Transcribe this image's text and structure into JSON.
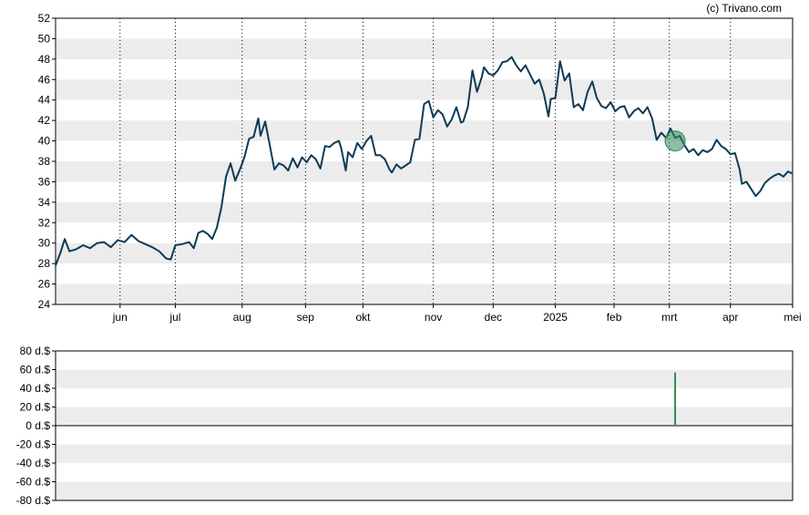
{
  "copyright": "(c) Trivano.com",
  "chart_data": [
    {
      "type": "line",
      "series": [
        {
          "values": [
            [
              0,
              27.8
            ],
            [
              4,
              29.0
            ],
            [
              8,
              30.4
            ],
            [
              12,
              29.2
            ],
            [
              18,
              29.4
            ],
            [
              24,
              29.8
            ],
            [
              30,
              29.5
            ],
            [
              36,
              30.0
            ],
            [
              42,
              30.1
            ],
            [
              48,
              29.6
            ],
            [
              54,
              30.3
            ],
            [
              60,
              30.1
            ],
            [
              66,
              30.8
            ],
            [
              72,
              30.2
            ],
            [
              78,
              29.9
            ],
            [
              84,
              29.6
            ],
            [
              90,
              29.2
            ],
            [
              96,
              28.5
            ],
            [
              100,
              28.4
            ],
            [
              104,
              29.8
            ],
            [
              110,
              29.9
            ],
            [
              116,
              30.1
            ],
            [
              120,
              29.5
            ],
            [
              124,
              31.0
            ],
            [
              128,
              31.2
            ],
            [
              132,
              30.9
            ],
            [
              136,
              30.4
            ],
            [
              140,
              31.5
            ],
            [
              144,
              33.5
            ],
            [
              148,
              36.5
            ],
            [
              152,
              37.8
            ],
            [
              156,
              36.1
            ],
            [
              160,
              37.2
            ],
            [
              164,
              38.4
            ],
            [
              168,
              40.2
            ],
            [
              172,
              40.4
            ],
            [
              176,
              42.2
            ],
            [
              178,
              40.5
            ],
            [
              182,
              41.9
            ],
            [
              186,
              39.6
            ],
            [
              190,
              37.2
            ],
            [
              194,
              37.8
            ],
            [
              198,
              37.6
            ],
            [
              202,
              37.1
            ],
            [
              206,
              38.3
            ],
            [
              210,
              37.4
            ],
            [
              214,
              38.4
            ],
            [
              218,
              37.9
            ],
            [
              222,
              38.6
            ],
            [
              226,
              38.2
            ],
            [
              230,
              37.3
            ],
            [
              234,
              39.5
            ],
            [
              238,
              39.4
            ],
            [
              242,
              39.8
            ],
            [
              246,
              40.0
            ],
            [
              248,
              39.3
            ],
            [
              250,
              38.2
            ],
            [
              252,
              37.1
            ],
            [
              254,
              38.9
            ],
            [
              258,
              38.4
            ],
            [
              262,
              39.8
            ],
            [
              266,
              39.2
            ],
            [
              270,
              40.0
            ],
            [
              274,
              40.5
            ],
            [
              278,
              38.6
            ],
            [
              282,
              38.6
            ],
            [
              286,
              38.2
            ],
            [
              290,
              37.2
            ],
            [
              292,
              36.9
            ],
            [
              296,
              37.7
            ],
            [
              300,
              37.3
            ],
            [
              304,
              37.6
            ],
            [
              308,
              37.9
            ],
            [
              312,
              40.1
            ],
            [
              316,
              40.2
            ],
            [
              320,
              43.6
            ],
            [
              324,
              43.9
            ],
            [
              328,
              42.3
            ],
            [
              332,
              43.0
            ],
            [
              336,
              42.6
            ],
            [
              340,
              41.4
            ],
            [
              344,
              42.1
            ],
            [
              348,
              43.3
            ],
            [
              352,
              41.8
            ],
            [
              354,
              41.9
            ],
            [
              358,
              43.3
            ],
            [
              362,
              46.9
            ],
            [
              366,
              44.8
            ],
            [
              370,
              46.2
            ],
            [
              372,
              47.2
            ],
            [
              376,
              46.6
            ],
            [
              380,
              46.4
            ],
            [
              384,
              46.9
            ],
            [
              388,
              47.7
            ],
            [
              392,
              47.8
            ],
            [
              396,
              48.2
            ],
            [
              400,
              47.4
            ],
            [
              404,
              46.8
            ],
            [
              408,
              47.4
            ],
            [
              412,
              46.5
            ],
            [
              416,
              45.6
            ],
            [
              420,
              46.0
            ],
            [
              424,
              44.6
            ],
            [
              428,
              42.4
            ],
            [
              430,
              44.1
            ],
            [
              434,
              44.2
            ],
            [
              438,
              47.8
            ],
            [
              442,
              45.9
            ],
            [
              446,
              46.6
            ],
            [
              450,
              43.3
            ],
            [
              454,
              43.6
            ],
            [
              458,
              43.0
            ],
            [
              462,
              44.8
            ],
            [
              466,
              45.8
            ],
            [
              470,
              44.2
            ],
            [
              474,
              43.4
            ],
            [
              478,
              43.2
            ],
            [
              482,
              43.8
            ],
            [
              486,
              42.9
            ],
            [
              490,
              43.3
            ],
            [
              494,
              43.4
            ],
            [
              498,
              42.3
            ],
            [
              502,
              42.9
            ],
            [
              506,
              43.2
            ],
            [
              510,
              42.7
            ],
            [
              514,
              43.3
            ],
            [
              518,
              42.2
            ],
            [
              522,
              40.1
            ],
            [
              526,
              40.8
            ],
            [
              530,
              40.3
            ],
            [
              534,
              41.2
            ],
            [
              538,
              40.3
            ],
            [
              542,
              40.5
            ],
            [
              546,
              39.6
            ],
            [
              550,
              38.9
            ],
            [
              554,
              39.2
            ],
            [
              558,
              38.6
            ],
            [
              562,
              39.1
            ],
            [
              566,
              38.9
            ],
            [
              570,
              39.2
            ],
            [
              574,
              40.1
            ],
            [
              578,
              39.5
            ],
            [
              582,
              39.2
            ],
            [
              586,
              38.7
            ],
            [
              590,
              38.8
            ],
            [
              594,
              37.2
            ],
            [
              596,
              35.8
            ],
            [
              600,
              36.0
            ],
            [
              604,
              35.3
            ],
            [
              608,
              34.6
            ],
            [
              612,
              35.1
            ],
            [
              616,
              35.9
            ],
            [
              620,
              36.3
            ],
            [
              624,
              36.6
            ],
            [
              628,
              36.8
            ],
            [
              632,
              36.5
            ],
            [
              636,
              37.0
            ],
            [
              640,
              36.8
            ]
          ]
        }
      ],
      "x_axis": {
        "type": "date",
        "range": [
          0,
          640
        ],
        "ticks": [
          {
            "label": "jun",
            "x": 56
          },
          {
            "label": "jul",
            "x": 104
          },
          {
            "label": "aug",
            "x": 162
          },
          {
            "label": "sep",
            "x": 217
          },
          {
            "label": "okt",
            "x": 267
          },
          {
            "label": "nov",
            "x": 328
          },
          {
            "label": "dec",
            "x": 380
          },
          {
            "label": "2025",
            "x": 434
          },
          {
            "label": "feb",
            "x": 485
          },
          {
            "label": "mrt",
            "x": 533
          },
          {
            "label": "apr",
            "x": 586
          },
          {
            "label": "mei",
            "x": 640
          }
        ]
      },
      "y_axis": {
        "ylim": [
          24,
          52
        ],
        "ticks": [
          "24",
          "26",
          "28",
          "30",
          "32",
          "34",
          "36",
          "38",
          "40",
          "42",
          "44",
          "46",
          "48",
          "50",
          "52"
        ]
      },
      "annotations": [
        {
          "type": "marker",
          "x": 538,
          "y": 40.0,
          "color": "#2e8b57"
        }
      ],
      "grid": "alternating-bands",
      "colors": {
        "line": "#0e3a56",
        "band": "#ececec"
      }
    },
    {
      "type": "bar",
      "bars": [
        {
          "x": 538,
          "value": 57
        }
      ],
      "y_axis": {
        "ylim": [
          -80,
          80
        ],
        "ticks": [
          "80 d.$",
          "60 d.$",
          "40 d.$",
          "20 d.$",
          "0 d.$",
          "-20 d.$",
          "-40 d.$",
          "-60 d.$",
          "-80 d.$"
        ]
      },
      "grid": "alternating-bands",
      "colors": {
        "bar": "#2e8b57",
        "band": "#ececec"
      }
    }
  ]
}
